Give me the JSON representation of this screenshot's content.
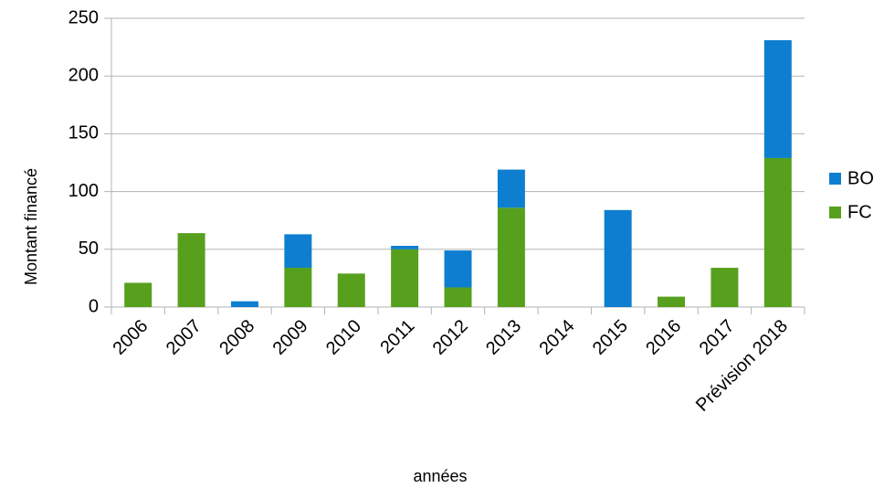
{
  "chart_data": {
    "type": "stacked_bar",
    "categories": [
      "2006",
      "2007",
      "2008",
      "2009",
      "2010",
      "2011",
      "2012",
      "2013",
      "2014",
      "2015",
      "2016",
      "2017",
      "Prévision 2018"
    ],
    "series": [
      {
        "name": "FC",
        "color": "#57a01e",
        "values": [
          21,
          64,
          0,
          34,
          29,
          50,
          17,
          86,
          0,
          0,
          9,
          34,
          129
        ]
      },
      {
        "name": "BO",
        "color": "#0e7fd0",
        "values": [
          0,
          0,
          5,
          29,
          0,
          3,
          32,
          33,
          0,
          84,
          0,
          0,
          102
        ]
      }
    ],
    "ylim": [
      0,
      250
    ],
    "yticks": [
      0,
      50,
      100,
      150,
      200,
      250
    ],
    "grid": true,
    "xlabel": "années",
    "ylabel": "Montant financé",
    "legend": "right"
  }
}
